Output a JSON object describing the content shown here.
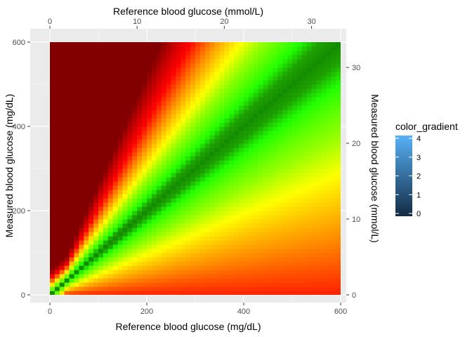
{
  "chart_data": {
    "type": "heatmap",
    "title": "",
    "x_bottom": {
      "label": "Reference blood glucose (mg/dL)",
      "range": [
        -5,
        610
      ],
      "ticks": [
        0,
        200,
        400,
        600
      ],
      "tick_labels": [
        "0",
        "200",
        "400",
        "600"
      ]
    },
    "x_top": {
      "label": "Reference blood glucose (mmol/L)",
      "ticks": [
        0,
        10,
        20,
        30
      ],
      "tick_labels": [
        "0",
        "10",
        "20",
        "30"
      ],
      "mgdl_per_unit": 18.0
    },
    "y_left": {
      "label": "Measured blood glucose (mg/dL)",
      "range": [
        -18,
        618
      ],
      "ticks": [
        0,
        200,
        400,
        600
      ],
      "tick_labels": [
        "0",
        "200",
        "400",
        "600"
      ]
    },
    "y_right": {
      "label": "Measured blood glucose (mmol/L)",
      "ticks": [
        0,
        10,
        20,
        30
      ],
      "tick_labels": [
        "0",
        "10",
        "20",
        "30"
      ],
      "mgdl_per_unit": 18.0
    },
    "grid": true,
    "panel_background": "#EBEBEB",
    "grid_color": "#FFFFFF",
    "heatmap": {
      "extent_mgdl": [
        0,
        600
      ],
      "description_palette": [
        "#1A9600",
        "#22FF00",
        "#FFFF00",
        "#FF8000",
        "#FF0000",
        "#8B0000"
      ]
    },
    "legend": {
      "title": "color_gradient",
      "placement": "right",
      "min": 0,
      "max": 4,
      "ticks": [
        0,
        1,
        2,
        3,
        4
      ],
      "tick_labels": [
        "0",
        "1",
        "2",
        "3",
        "4"
      ],
      "low_color": "#132B43",
      "high_color": "#56B1F7"
    }
  }
}
